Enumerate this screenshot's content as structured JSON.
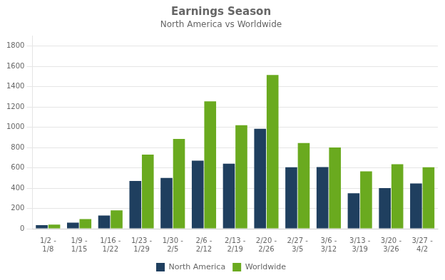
{
  "chart_data": {
    "type": "bar",
    "title": "Earnings Season",
    "subtitle": "North America vs Worldwide",
    "categories": [
      "1/2 -\n1/8",
      "1/9 -\n1/15",
      "1/16 -\n1/22",
      "1/23 -\n1/29",
      "1/30 -\n2/5",
      "2/6 -\n2/12",
      "2/13 -\n2/19",
      "2/20 -\n2/26",
      "2/27 -\n3/5",
      "3/6 -\n3/12",
      "3/13 -\n3/19",
      "3/20 -\n3/26",
      "3/27 -\n4/2"
    ],
    "series": [
      {
        "name": "North America",
        "color": "#1f3f5f",
        "values": [
          35,
          60,
          130,
          470,
          500,
          670,
          640,
          985,
          605,
          608,
          350,
          400,
          445
        ]
      },
      {
        "name": "Worldwide",
        "color": "#6aaa1f",
        "values": [
          40,
          95,
          180,
          730,
          885,
          1255,
          1020,
          1515,
          845,
          800,
          565,
          635,
          605
        ]
      }
    ],
    "ylim": [
      0,
      1900
    ],
    "yticks": [
      0,
      200,
      400,
      600,
      800,
      1000,
      1200,
      1400,
      1600,
      1800
    ],
    "grid": true,
    "legend": "bottom"
  }
}
